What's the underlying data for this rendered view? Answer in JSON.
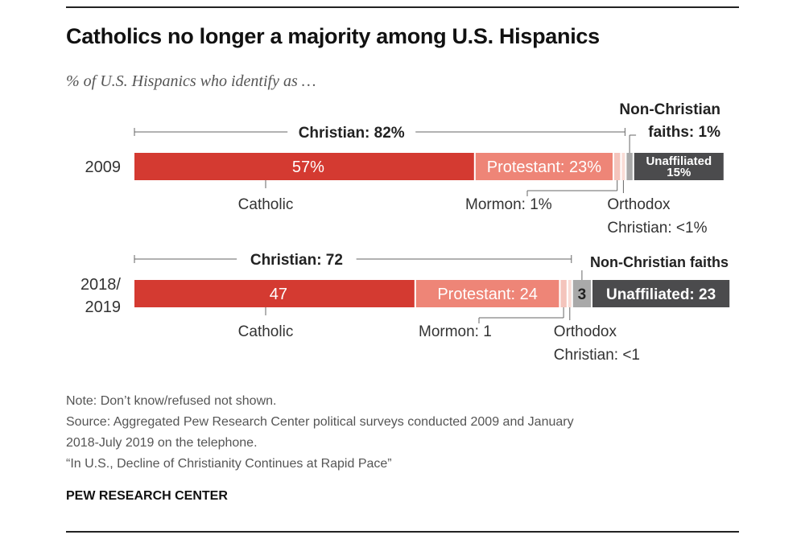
{
  "title": "Catholics no longer a majority among U.S. Hispanics",
  "subtitle": "% of U.S. Hispanics who identify as …",
  "chart_data": {
    "type": "stacked-bar",
    "orientation": "horizontal",
    "categories": [
      "2009",
      "2018/\n2019"
    ],
    "series": [
      {
        "name": "Catholic",
        "values": [
          57,
          47
        ]
      },
      {
        "name": "Protestant",
        "values": [
          23,
          24
        ]
      },
      {
        "name": "Mormon",
        "values": [
          1,
          1
        ]
      },
      {
        "name": "Orthodox Christian",
        "values": [
          0.5,
          0.5
        ]
      },
      {
        "name": "Non-Christian faiths",
        "values": [
          1,
          3
        ]
      },
      {
        "name": "Unaffiliated",
        "values": [
          15,
          23
        ]
      }
    ],
    "colors": {
      "Catholic": "#d43a31",
      "Protestant": "#ee8577",
      "Mormon": "#f4c4bc",
      "Orthodox Christian": "#f9dcd6",
      "Non-Christian faiths": "#a9a9a9",
      "Unaffiliated": "#4b4b4d"
    },
    "rows": [
      {
        "year_label": "2009",
        "christian_label": "Christian: 82%",
        "catholic_value": "57%",
        "protestant_value": "Protestant: 23%",
        "unaffiliated_value": "Unaffiliated\n15%",
        "catholic_label": "Catholic",
        "mormon_label": "Mormon: 1%",
        "orthodox_label": "Orthodox\nChristian: <1%",
        "nonchristian_label": "Non-Christian\nfaiths: 1%"
      },
      {
        "year_label": "2018/\n2019",
        "christian_label": "Christian: 72",
        "catholic_value": "47",
        "protestant_value": "Protestant: 24",
        "nonchristian_value": "3",
        "unaffiliated_value": "Unaffiliated: 23",
        "catholic_label": "Catholic",
        "mormon_label": "Mormon: 1",
        "orthodox_label": "Orthodox\nChristian: <1",
        "nonchristian_label": "Non-Christian faiths"
      }
    ]
  },
  "notes": {
    "note": "Note: Don’t know/refused not shown.",
    "source_1": "Source: Aggregated Pew Research Center political surveys conducted 2009 and January",
    "source_2": "2018-July 2019 on the telephone.",
    "report": "“In U.S., Decline of Christianity Continues at Rapid Pace”"
  },
  "organization": "PEW RESEARCH CENTER"
}
